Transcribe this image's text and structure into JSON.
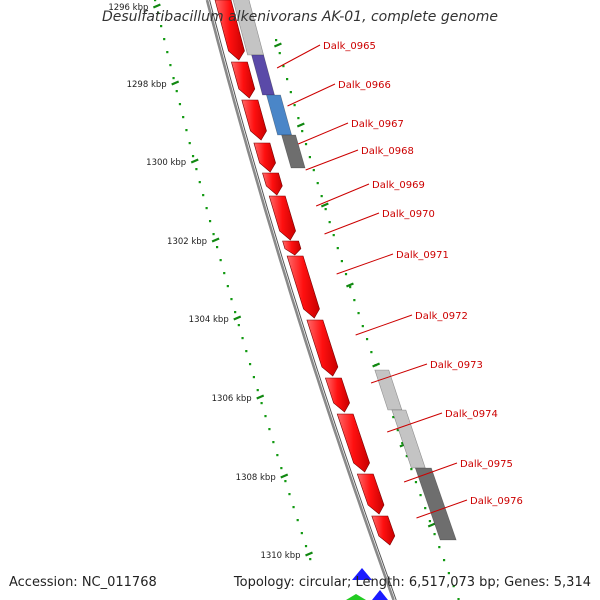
{
  "title": "Desulfatibacillum alkenivorans AK-01, complete genome",
  "accession": "Accession: NC_011768",
  "topology": "Topology: circular; Length: 6,517,073 bp; Genes: 5,314",
  "colors": {
    "backbone": "#8a8a8a",
    "gene": "#ff1a1a",
    "gene_label": "#cc0000",
    "tick": "#118811",
    "dot": "#119911",
    "grey_dark": "#6e6e6e",
    "grey_light": "#c4c4c4",
    "blue": "#4a86c8",
    "purple": "#5a4aa8"
  },
  "ticks": [
    "1296 kbp",
    "1298 kbp",
    "1300 kbp",
    "1302 kbp",
    "1304 kbp",
    "1306 kbp",
    "1308 kbp",
    "1310 kbp"
  ],
  "genes": [
    "Dalk_0965",
    "Dalk_0966",
    "Dalk_0967",
    "Dalk_0968",
    "Dalk_0969",
    "Dalk_0970",
    "Dalk_0971",
    "Dalk_0972",
    "Dalk_0973",
    "Dalk_0974",
    "Dalk_0975",
    "Dalk_0976"
  ]
}
